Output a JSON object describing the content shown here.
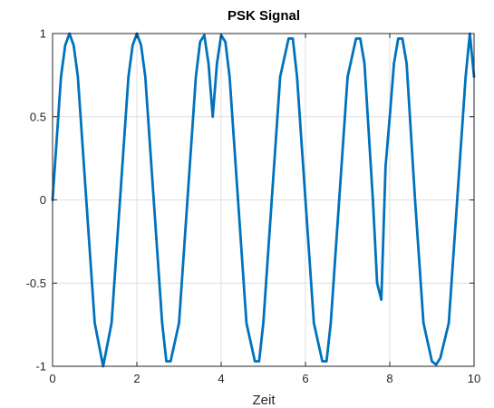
{
  "chart_data": {
    "type": "line",
    "title": "PSK Signal",
    "xlabel": "Zeit",
    "ylabel": "",
    "xlim": [
      0,
      10
    ],
    "ylim": [
      -1,
      1
    ],
    "xticks": [
      0,
      2,
      4,
      6,
      8,
      10
    ],
    "xtick_labels": [
      "0",
      "2",
      "4",
      "6",
      "8",
      "10"
    ],
    "yticks": [
      -1,
      -0.5,
      0,
      0.5,
      1
    ],
    "ytick_labels": [
      "-1",
      "-0.5",
      "0",
      "0.5",
      "1"
    ],
    "grid": true,
    "box": true,
    "series": [
      {
        "color": "#0072bd",
        "x": [
          0,
          0.2,
          0.3,
          0.4,
          0.5,
          0.6,
          0.8,
          1.0,
          1.2,
          1.4,
          1.6,
          1.8,
          1.9,
          2.0,
          2.1,
          2.2,
          2.4,
          2.6,
          2.7,
          2.8,
          3.0,
          3.2,
          3.4,
          3.5,
          3.6,
          3.7,
          3.8,
          3.9,
          4.0,
          4.1,
          4.2,
          4.4,
          4.6,
          4.8,
          4.9,
          5.0,
          5.2,
          5.4,
          5.6,
          5.7,
          5.8,
          6.0,
          6.2,
          6.4,
          6.5,
          6.6,
          6.8,
          7.0,
          7.2,
          7.3,
          7.4,
          7.6,
          7.7,
          7.8,
          7.9,
          8.0,
          8.1,
          8.2,
          8.3,
          8.4,
          8.6,
          8.8,
          9.0,
          9.1,
          9.2,
          9.4,
          9.6,
          9.8,
          9.9,
          10.0
        ],
        "y": [
          0,
          0.74,
          0.93,
          1,
          0.93,
          0.74,
          0,
          -0.74,
          -1,
          -0.74,
          0,
          0.74,
          0.93,
          1,
          0.93,
          0.74,
          0,
          -0.74,
          -0.97,
          -0.97,
          -0.74,
          0,
          0.74,
          0.95,
          0.99,
          0.82,
          0.5,
          0.82,
          0.99,
          0.95,
          0.74,
          0,
          -0.74,
          -0.97,
          -0.97,
          -0.74,
          0,
          0.74,
          0.97,
          0.97,
          0.74,
          0,
          -0.74,
          -0.97,
          -0.97,
          -0.74,
          0,
          0.74,
          0.97,
          0.97,
          0.82,
          0,
          -0.5,
          -0.6,
          0.2,
          0.5,
          0.82,
          0.97,
          0.97,
          0.82,
          0,
          -0.74,
          -0.97,
          -0.99,
          -0.95,
          -0.74,
          0,
          0.74,
          1,
          0.74
        ]
      }
    ]
  }
}
